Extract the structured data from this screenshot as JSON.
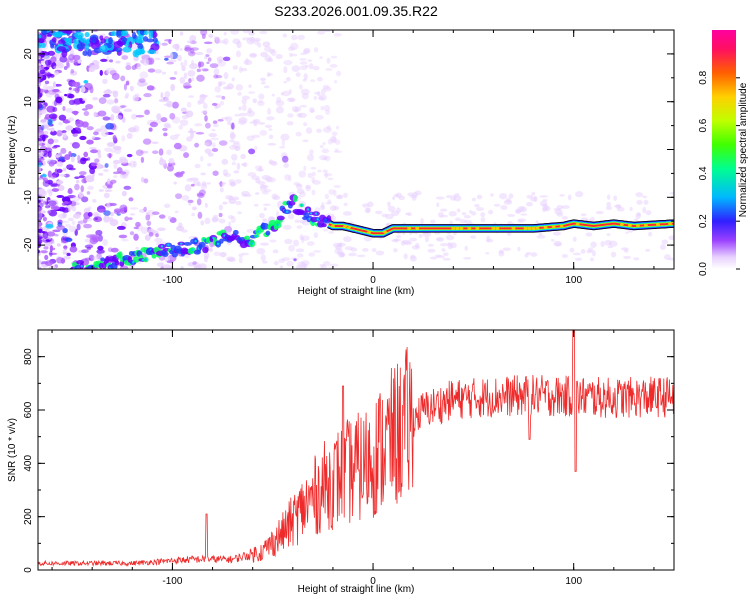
{
  "title": "S233.2026.001.09.35.R22",
  "chart_data": [
    {
      "type": "heatmap",
      "xlabel": "Height of straight line (km)",
      "ylabel": "Frequency (Hz)",
      "xlim": [
        -167,
        150
      ],
      "ylim": [
        -25,
        25
      ],
      "xticks": [
        -100,
        0,
        100
      ],
      "yticks": [
        -20,
        -10,
        0,
        10,
        20
      ],
      "colorbar": {
        "label": "Normalized spectral amplitude",
        "range": [
          0,
          1
        ],
        "ticks": [
          "0.0",
          "0.2",
          "0.4",
          "0.6",
          "0.8"
        ],
        "colors": [
          "#ffffff",
          "#e8d0ff",
          "#b060ff",
          "#6a00ff",
          "#2040ff",
          "#00c8ff",
          "#00ff60",
          "#b0ff00",
          "#ffd000",
          "#ff6000",
          "#ff1060",
          "#ff00a0"
        ]
      },
      "ridge": {
        "x": [
          -150,
          -140,
          -130,
          -120,
          -110,
          -100,
          -90,
          -80,
          -75,
          -70,
          -65,
          -60,
          -55,
          -50,
          -45,
          -40,
          -35,
          -30,
          -25,
          -20,
          -15,
          -10,
          -5,
          0,
          5,
          10,
          20,
          40,
          60,
          80,
          95,
          100,
          110,
          120,
          130,
          150
        ],
        "y": [
          -25,
          -24.5,
          -23.5,
          -22.5,
          -21.5,
          -21,
          -20.5,
          -19.5,
          -18.5,
          -18,
          -19.5,
          -18.5,
          -17,
          -16,
          -13,
          -11,
          -13,
          -14.5,
          -15,
          -16,
          -16,
          -16.5,
          -17,
          -17.5,
          -17.5,
          -16.5,
          -16.5,
          -16.5,
          -16.5,
          -16.5,
          -16,
          -15.5,
          -16,
          -15.5,
          -16,
          -15.5
        ]
      }
    },
    {
      "type": "line",
      "xlabel": "Height of straight line (km)",
      "ylabel": "SNR (10 * v/v)",
      "xlim": [
        -167,
        150
      ],
      "ylim": [
        0,
        900
      ],
      "xticks": [
        -100,
        0,
        100
      ],
      "yticks": [
        0,
        200,
        400,
        600,
        800
      ],
      "color": "#ee2a2a",
      "trend": {
        "x": [
          -167,
          -120,
          -90,
          -70,
          -55,
          -45,
          -35,
          -25,
          -15,
          -5,
          5,
          15,
          25,
          40,
          60,
          80,
          100,
          120,
          150
        ],
        "y": [
          25,
          25,
          40,
          40,
          70,
          140,
          230,
          310,
          360,
          390,
          460,
          530,
          600,
          640,
          650,
          655,
          650,
          645,
          650
        ]
      },
      "features": [
        {
          "x": -83,
          "y": 210
        },
        {
          "x": -15,
          "y": 690
        },
        {
          "x": 100,
          "y": 900
        },
        {
          "x": 101,
          "y": 370
        },
        {
          "x": 78,
          "y": 490
        }
      ]
    }
  ]
}
